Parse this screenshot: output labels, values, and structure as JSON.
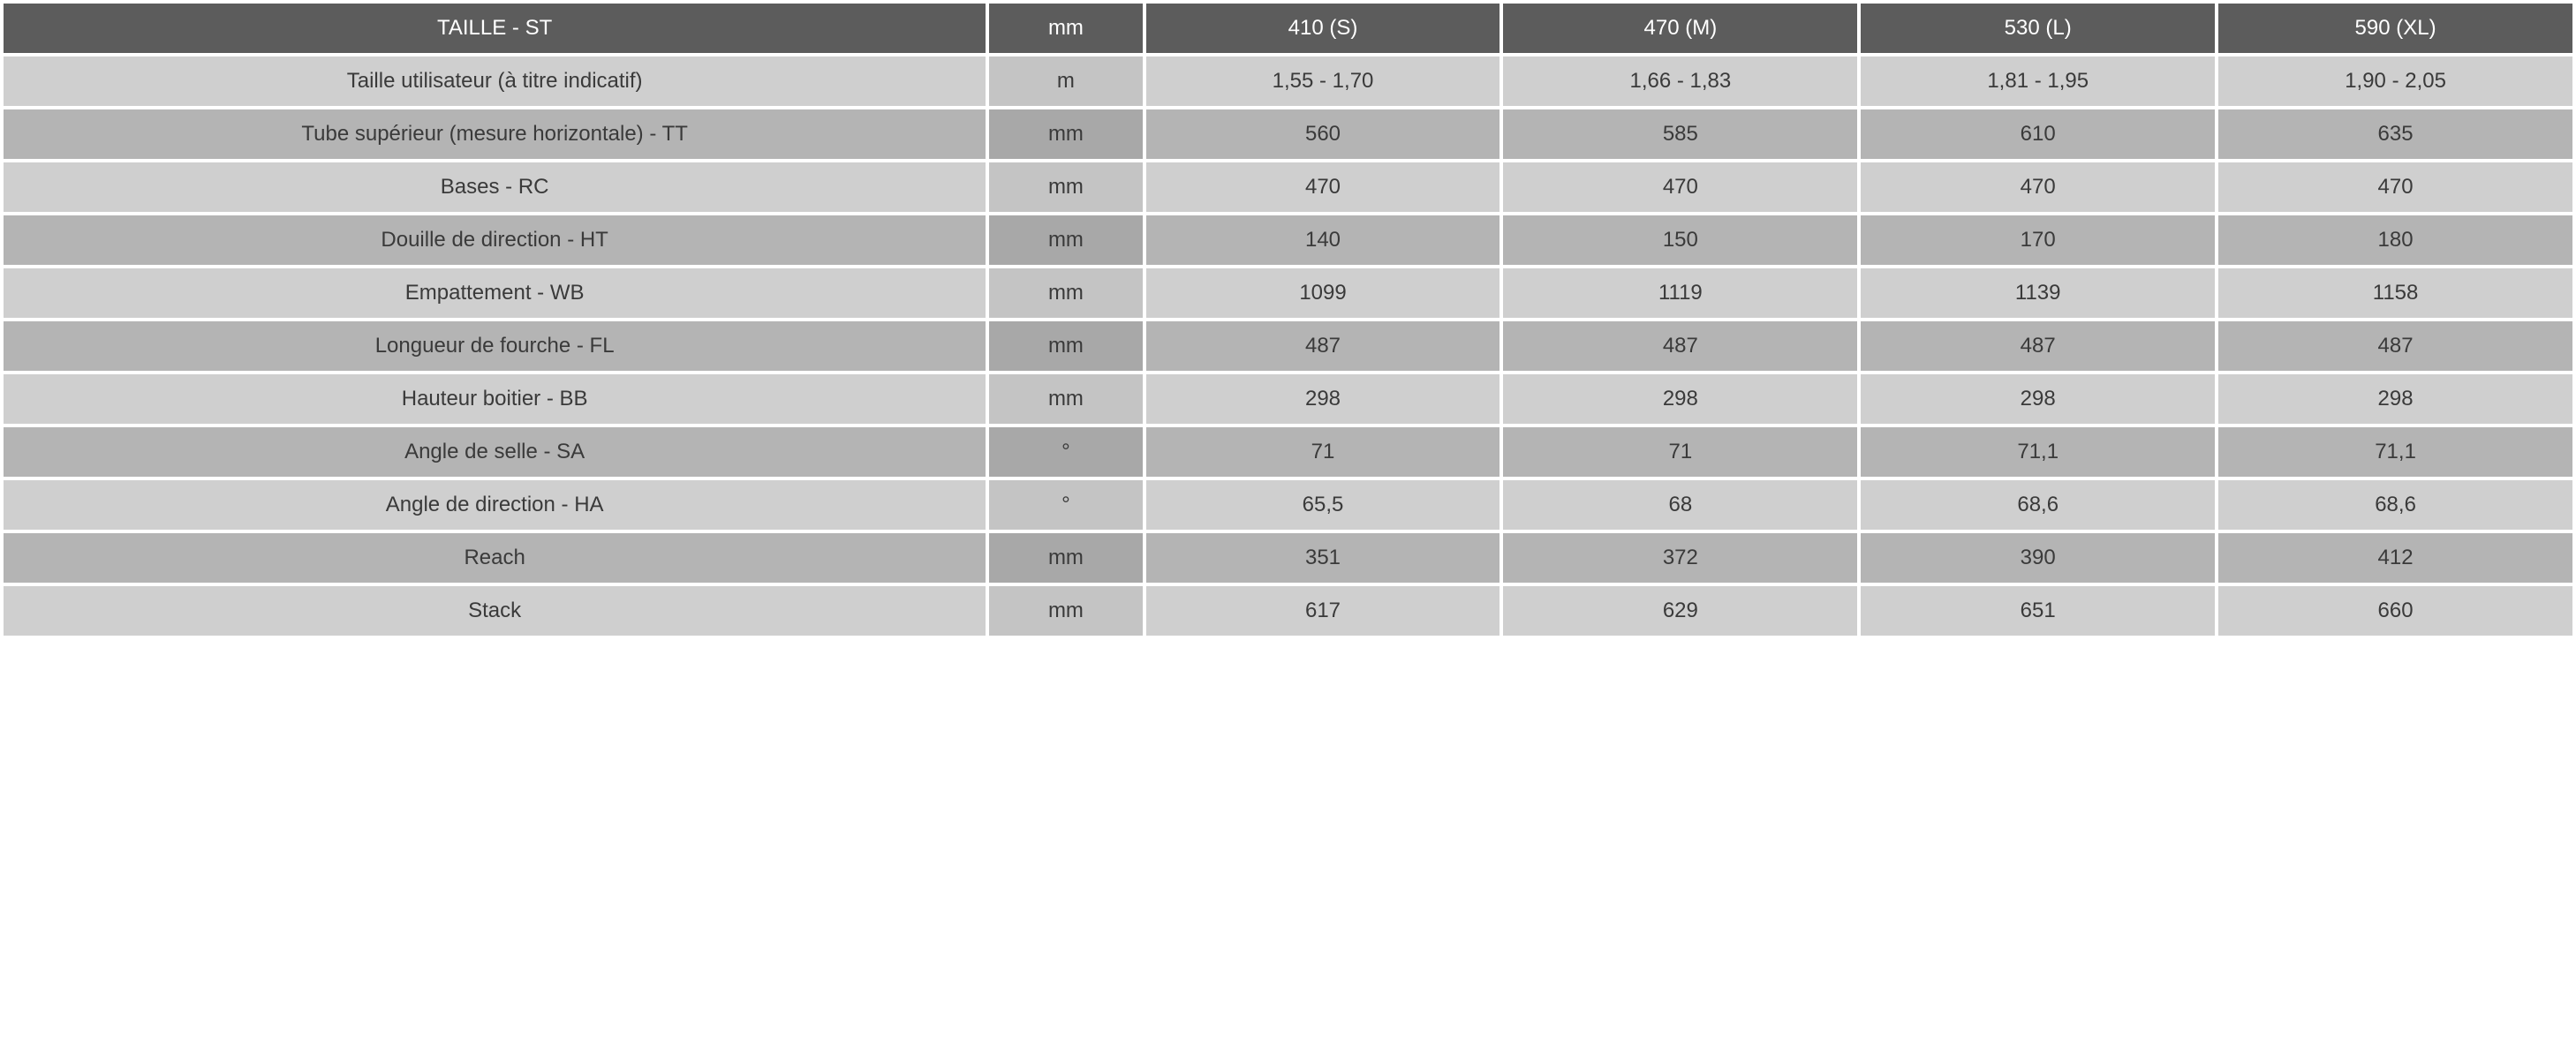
{
  "table": {
    "header": {
      "title": "TAILLE - ST",
      "unit": "mm",
      "sizes": [
        "410 (S)",
        "470 (M)",
        "530 (L)",
        "590 (XL)"
      ]
    },
    "rows": [
      {
        "label": "Taille utilisateur (à titre indicatif)",
        "unit": "m",
        "values": [
          "1,55 - 1,70",
          "1,66 - 1,83",
          "1,81 - 1,95",
          "1,90 - 2,05"
        ]
      },
      {
        "label": "Tube supérieur (mesure horizontale) - TT",
        "unit": "mm",
        "values": [
          "560",
          "585",
          "610",
          "635"
        ]
      },
      {
        "label": "Bases - RC",
        "unit": "mm",
        "values": [
          "470",
          "470",
          "470",
          "470"
        ]
      },
      {
        "label": "Douille de direction - HT",
        "unit": "mm",
        "values": [
          "140",
          "150",
          "170",
          "180"
        ]
      },
      {
        "label": "Empattement - WB",
        "unit": "mm",
        "values": [
          "1099",
          "1119",
          "1139",
          "1158"
        ]
      },
      {
        "label": "Longueur de fourche - FL",
        "unit": "mm",
        "values": [
          "487",
          "487",
          "487",
          "487"
        ]
      },
      {
        "label": "Hauteur boitier - BB",
        "unit": "mm",
        "values": [
          "298",
          "298",
          "298",
          "298"
        ]
      },
      {
        "label": "Angle de selle - SA",
        "unit": "°",
        "values": [
          "71",
          "71",
          "71,1",
          "71,1"
        ]
      },
      {
        "label": "Angle de direction - HA",
        "unit": "°",
        "values": [
          "65,5",
          "68",
          "68,6",
          "68,6"
        ]
      },
      {
        "label": "Reach",
        "unit": "mm",
        "values": [
          "351",
          "372",
          "390",
          "412"
        ]
      },
      {
        "label": "Stack",
        "unit": "mm",
        "values": [
          "617",
          "629",
          "651",
          "660"
        ]
      }
    ],
    "styling": {
      "header_bg": "#5c5c5c",
      "header_text_color": "#ffffff",
      "row_odd_bg": "#cfcfcf",
      "row_even_bg": "#b4b4b4",
      "unit_odd_bg": "#c4c4c4",
      "unit_even_bg": "#a8a8a8",
      "text_color": "#3a3a3a",
      "font_size": 24,
      "font_weight": 300,
      "border_spacing": 4,
      "label_col_width_pct": 38.5,
      "unit_col_width_pct": 6,
      "data_col_width_pct": 13.875
    }
  }
}
